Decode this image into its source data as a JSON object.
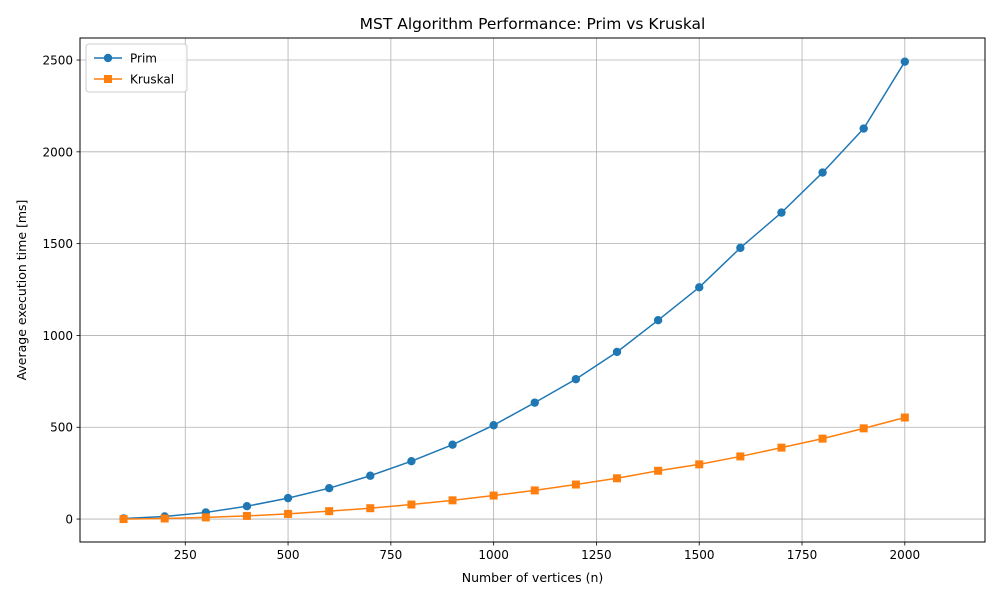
{
  "chart_data": {
    "type": "line",
    "title": "MST Algorithm Performance: Prim vs Kruskal",
    "xlabel": "Number of vertices (n)",
    "ylabel": "Average execution time [ms]",
    "xlim": [
      -6,
      2195
    ],
    "ylim": [
      -125,
      2620
    ],
    "xticks": [
      250,
      500,
      750,
      1000,
      1250,
      1500,
      1750,
      2000
    ],
    "yticks": [
      0,
      500,
      1000,
      1500,
      2000,
      2500
    ],
    "grid": true,
    "legend_position": "top-left",
    "x": [
      100,
      200,
      300,
      400,
      500,
      600,
      700,
      800,
      900,
      1000,
      1100,
      1200,
      1300,
      1400,
      1500,
      1600,
      1700,
      1800,
      1900,
      2000
    ],
    "series": [
      {
        "name": "Prim",
        "marker": "circle",
        "color": "#1f77b4",
        "values": [
          3,
          14,
          36,
          70,
          114,
          168,
          236,
          315,
          405,
          511,
          634,
          762,
          910,
          1083,
          1262,
          1477,
          1669,
          1887,
          2127,
          2491
        ]
      },
      {
        "name": "Kruskal",
        "marker": "square",
        "color": "#ff7f0e",
        "values": [
          0,
          3,
          9,
          17,
          28,
          43,
          59,
          79,
          102,
          128,
          156,
          188,
          222,
          263,
          298,
          341,
          389,
          438,
          494,
          553
        ]
      }
    ]
  }
}
